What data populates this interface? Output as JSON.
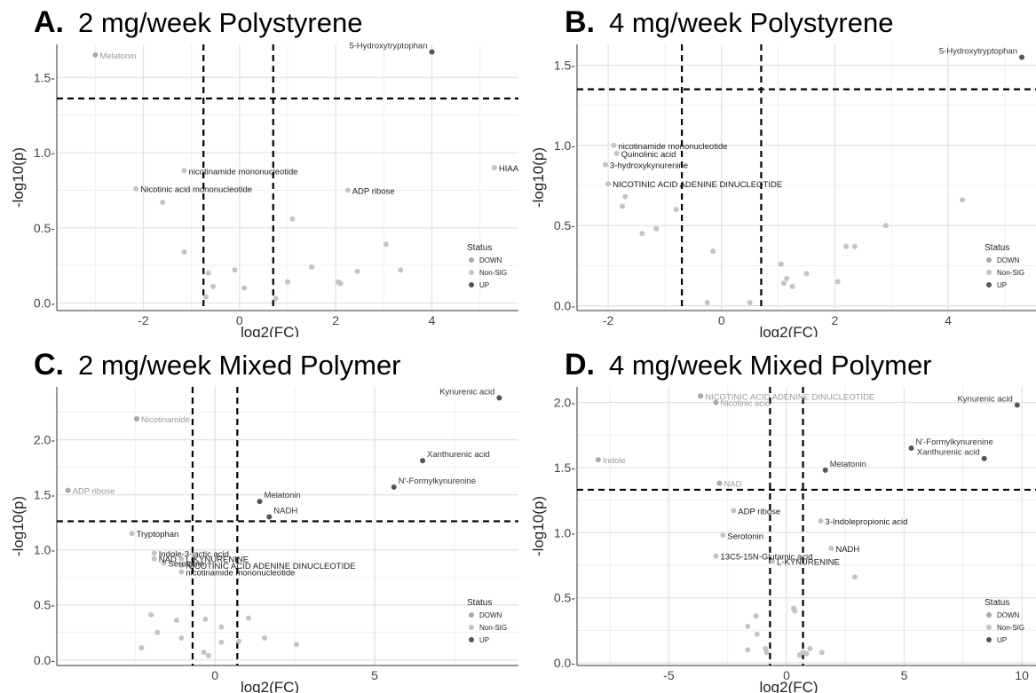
{
  "figure": {
    "panels": [
      {
        "letter": "A.",
        "title": "2 mg/week Polystyrene"
      },
      {
        "letter": "B.",
        "title": "4 mg/week Polystyrene"
      },
      {
        "letter": "C.",
        "title": "2 mg/week Mixed Polymer"
      },
      {
        "letter": "D.",
        "title": "4 mg/week Mixed Polymer"
      }
    ]
  },
  "chart_data": [
    {
      "type": "scatter",
      "title": "2 mg/week Polystyrene",
      "xlabel": "log2(FC)",
      "ylabel": "-log10(p)",
      "xlim": [
        -3.8,
        5.8
      ],
      "ylim": [
        -0.05,
        1.72
      ],
      "xticks": [
        -2,
        0,
        2,
        4
      ],
      "yticks": [
        0.0,
        0.5,
        1.0,
        1.5
      ],
      "ytick_labels": [
        "0.0-",
        "0.5-",
        "1.0-",
        "1.5-"
      ],
      "xtick_labels": [
        "-2",
        "0",
        "2",
        "4"
      ],
      "thresholds": {
        "x": [
          -0.75,
          0.7
        ],
        "y": [
          1.36
        ]
      },
      "legend": {
        "title": "Status",
        "position": "right",
        "entries": [
          "DOWN",
          "Non-SIG",
          "UP"
        ]
      },
      "colors": {
        "DOWN": "#a8a8a8",
        "Non-SIG": "#c4c4c4",
        "UP": "#555555"
      },
      "points": [
        {
          "x": -3.0,
          "y": 1.65,
          "status": "DOWN",
          "label": "Melatonin"
        },
        {
          "x": 4.0,
          "y": 1.67,
          "status": "UP",
          "label": "5-Hydroxytryptophan"
        },
        {
          "x": -1.15,
          "y": 0.88,
          "status": "Non-SIG",
          "label": "nicotinamide mononucleotide"
        },
        {
          "x": -2.15,
          "y": 0.76,
          "status": "Non-SIG",
          "label": "Nicotinic acid mononucleotide"
        },
        {
          "x": -1.6,
          "y": 0.67,
          "status": "Non-SIG"
        },
        {
          "x": 2.25,
          "y": 0.75,
          "status": "Non-SIG",
          "label": "ADP ribose"
        },
        {
          "x": 5.3,
          "y": 0.9,
          "status": "Non-SIG",
          "label": "HIAA"
        },
        {
          "x": 1.1,
          "y": 0.56,
          "status": "Non-SIG"
        },
        {
          "x": -1.15,
          "y": 0.34,
          "status": "Non-SIG"
        },
        {
          "x": -0.65,
          "y": 0.2,
          "status": "Non-SIG"
        },
        {
          "x": -0.55,
          "y": 0.11,
          "status": "Non-SIG"
        },
        {
          "x": -0.7,
          "y": 0.04,
          "status": "Non-SIG"
        },
        {
          "x": -0.1,
          "y": 0.22,
          "status": "Non-SIG"
        },
        {
          "x": 0.1,
          "y": 0.1,
          "status": "Non-SIG"
        },
        {
          "x": 0.75,
          "y": 0.03,
          "status": "Non-SIG"
        },
        {
          "x": 1.0,
          "y": 0.14,
          "status": "Non-SIG"
        },
        {
          "x": 1.5,
          "y": 0.24,
          "status": "Non-SIG"
        },
        {
          "x": 2.05,
          "y": 0.14,
          "status": "Non-SIG"
        },
        {
          "x": 2.1,
          "y": 0.13,
          "status": "Non-SIG"
        },
        {
          "x": 2.45,
          "y": 0.21,
          "status": "Non-SIG"
        },
        {
          "x": 3.05,
          "y": 0.39,
          "status": "Non-SIG"
        },
        {
          "x": 3.35,
          "y": 0.22,
          "status": "Non-SIG"
        }
      ]
    },
    {
      "type": "scatter",
      "title": "4 mg/week Polystyrene",
      "xlabel": "log2(FC)",
      "ylabel": "-log10(p)",
      "xlim": [
        -2.55,
        5.55
      ],
      "ylim": [
        -0.03,
        1.63
      ],
      "xticks": [
        -2,
        0,
        2,
        4
      ],
      "yticks": [
        0.0,
        0.5,
        1.0,
        1.5
      ],
      "ytick_labels": [
        "0.0-",
        "0.5-",
        "1.0-",
        "1.5-"
      ],
      "xtick_labels": [
        "-2",
        "0",
        "2",
        "4"
      ],
      "thresholds": {
        "x": [
          -0.7,
          0.7
        ],
        "y": [
          1.35
        ]
      },
      "legend": {
        "title": "Status",
        "position": "right",
        "entries": [
          "DOWN",
          "Non-SIG",
          "UP"
        ]
      },
      "colors": {
        "DOWN": "#a8a8a8",
        "Non-SIG": "#c4c4c4",
        "UP": "#555555"
      },
      "points": [
        {
          "x": 5.3,
          "y": 1.55,
          "status": "UP",
          "label": "5-Hydroxytryptophan"
        },
        {
          "x": -1.9,
          "y": 1.0,
          "status": "Non-SIG",
          "label": "nicotinamide mononucleotide"
        },
        {
          "x": -1.85,
          "y": 0.95,
          "status": "Non-SIG",
          "label": "Quinolinic acid"
        },
        {
          "x": -2.05,
          "y": 0.88,
          "status": "Non-SIG",
          "label": "3-hydroxykynurenine"
        },
        {
          "x": -2.0,
          "y": 0.76,
          "status": "Non-SIG",
          "label": "NICOTINIC ACID ADENINE DINUCLEOTIDE"
        },
        {
          "x": -1.7,
          "y": 0.68,
          "status": "Non-SIG"
        },
        {
          "x": -1.75,
          "y": 0.62,
          "status": "Non-SIG"
        },
        {
          "x": -0.8,
          "y": 0.6,
          "status": "Non-SIG"
        },
        {
          "x": -1.15,
          "y": 0.48,
          "status": "Non-SIG"
        },
        {
          "x": -1.4,
          "y": 0.45,
          "status": "Non-SIG"
        },
        {
          "x": -0.15,
          "y": 0.34,
          "status": "Non-SIG"
        },
        {
          "x": -0.25,
          "y": 0.02,
          "status": "Non-SIG"
        },
        {
          "x": 0.5,
          "y": 0.02,
          "status": "Non-SIG"
        },
        {
          "x": 1.05,
          "y": 0.26,
          "status": "Non-SIG"
        },
        {
          "x": 1.15,
          "y": 0.17,
          "status": "Non-SIG"
        },
        {
          "x": 1.1,
          "y": 0.14,
          "status": "Non-SIG"
        },
        {
          "x": 1.25,
          "y": 0.12,
          "status": "Non-SIG"
        },
        {
          "x": 1.5,
          "y": 0.2,
          "status": "Non-SIG"
        },
        {
          "x": 2.05,
          "y": 0.15,
          "status": "Non-SIG"
        },
        {
          "x": 2.2,
          "y": 0.37,
          "status": "Non-SIG"
        },
        {
          "x": 2.35,
          "y": 0.37,
          "status": "Non-SIG"
        },
        {
          "x": 2.9,
          "y": 0.5,
          "status": "Non-SIG"
        },
        {
          "x": 4.25,
          "y": 0.66,
          "status": "Non-SIG"
        }
      ]
    },
    {
      "type": "scatter",
      "title": "2 mg/week Mixed Polymer",
      "xlabel": "log2(FC)",
      "ylabel": "-log10(p)",
      "xlim": [
        -4.95,
        9.5
      ],
      "ylim": [
        -0.05,
        2.48
      ],
      "xticks": [
        0,
        5
      ],
      "yticks": [
        0.0,
        0.5,
        1.0,
        1.5,
        2.0
      ],
      "ytick_labels": [
        "0.0-",
        "0.5-",
        "1.0-",
        "1.5-",
        "2.0-"
      ],
      "xtick_labels": [
        "0",
        "5"
      ],
      "thresholds": {
        "x": [
          -0.7,
          0.7
        ],
        "y": [
          1.26
        ]
      },
      "legend": {
        "title": "Status",
        "position": "right",
        "entries": [
          "DOWN",
          "Non-SIG",
          "UP"
        ]
      },
      "colors": {
        "DOWN": "#a8a8a8",
        "Non-SIG": "#c4c4c4",
        "UP": "#555555"
      },
      "points": [
        {
          "x": 8.9,
          "y": 2.38,
          "status": "UP",
          "label": "Kynurenic acid"
        },
        {
          "x": -2.45,
          "y": 2.19,
          "status": "DOWN",
          "label": "Nicotinamide"
        },
        {
          "x": 6.5,
          "y": 1.81,
          "status": "UP",
          "label": "Xanthurenic acid"
        },
        {
          "x": -4.6,
          "y": 1.54,
          "status": "DOWN",
          "label": "ADP ribose"
        },
        {
          "x": 5.6,
          "y": 1.57,
          "status": "UP",
          "label": "N'-Formylkynurenine"
        },
        {
          "x": 1.4,
          "y": 1.44,
          "status": "UP",
          "label": "Melatonin"
        },
        {
          "x": 1.7,
          "y": 1.3,
          "status": "UP",
          "label": "NADH"
        },
        {
          "x": -2.6,
          "y": 1.15,
          "status": "Non-SIG",
          "label": "Tryptophan"
        },
        {
          "x": -1.9,
          "y": 0.97,
          "status": "Non-SIG",
          "label": "Indole-3-lactic acid"
        },
        {
          "x": -1.9,
          "y": 0.92,
          "status": "Non-SIG",
          "label": "NAD"
        },
        {
          "x": -1.05,
          "y": 0.92,
          "status": "Non-SIG",
          "label": "L-KYNURENINE"
        },
        {
          "x": -1.6,
          "y": 0.88,
          "status": "Non-SIG",
          "label": "Serotonin"
        },
        {
          "x": -1.05,
          "y": 0.86,
          "status": "Non-SIG",
          "label": "NICOTINIC ACID ADENINE DINUCLEOTIDE"
        },
        {
          "x": -1.05,
          "y": 0.8,
          "status": "Non-SIG",
          "label": "nicotinamide mononucleotide"
        },
        {
          "x": -2.0,
          "y": 0.41,
          "status": "Non-SIG"
        },
        {
          "x": -1.8,
          "y": 0.25,
          "status": "Non-SIG"
        },
        {
          "x": -2.3,
          "y": 0.11,
          "status": "Non-SIG"
        },
        {
          "x": -1.2,
          "y": 0.36,
          "status": "Non-SIG"
        },
        {
          "x": -1.05,
          "y": 0.2,
          "status": "Non-SIG"
        },
        {
          "x": -0.3,
          "y": 0.37,
          "status": "Non-SIG"
        },
        {
          "x": -0.35,
          "y": 0.07,
          "status": "Non-SIG"
        },
        {
          "x": -0.2,
          "y": 0.04,
          "status": "Non-SIG"
        },
        {
          "x": 0.2,
          "y": 0.3,
          "status": "Non-SIG"
        },
        {
          "x": 0.2,
          "y": 0.16,
          "status": "Non-SIG"
        },
        {
          "x": 0.75,
          "y": 0.17,
          "status": "Non-SIG"
        },
        {
          "x": 1.05,
          "y": 0.38,
          "status": "Non-SIG"
        },
        {
          "x": 1.55,
          "y": 0.2,
          "status": "Non-SIG"
        },
        {
          "x": 2.55,
          "y": 0.14,
          "status": "Non-SIG"
        }
      ]
    },
    {
      "type": "scatter",
      "title": "4 mg/week Mixed Polymer",
      "xlabel": "log2(FC)",
      "ylabel": "-log10(p)",
      "xlim": [
        -8.9,
        10.6
      ],
      "ylim": [
        -0.02,
        2.12
      ],
      "xticks": [
        -5,
        0,
        5,
        10
      ],
      "yticks": [
        0.0,
        0.5,
        1.0,
        1.5,
        2.0
      ],
      "ytick_labels": [
        "0.0-",
        "0.5-",
        "1.0-",
        "1.5-",
        "2.0-"
      ],
      "xtick_labels": [
        "-5",
        "0",
        "5",
        "10"
      ],
      "thresholds": {
        "x": [
          -0.7,
          0.7
        ],
        "y": [
          1.33
        ]
      },
      "legend": {
        "title": "Status",
        "position": "right",
        "entries": [
          "DOWN",
          "Non-SIG",
          "UP"
        ]
      },
      "colors": {
        "DOWN": "#a8a8a8",
        "Non-SIG": "#c4c4c4",
        "UP": "#555555"
      },
      "points": [
        {
          "x": -3.65,
          "y": 2.05,
          "status": "DOWN",
          "label": "NICOTINIC ACID ADENINE DINUCLEOTIDE"
        },
        {
          "x": -3.0,
          "y": 2.0,
          "status": "DOWN",
          "label": "Nicotinic acid"
        },
        {
          "x": 9.8,
          "y": 1.98,
          "status": "UP",
          "label": "Kynurenic acid"
        },
        {
          "x": -8.0,
          "y": 1.56,
          "status": "DOWN",
          "label": "Indole"
        },
        {
          "x": 5.3,
          "y": 1.65,
          "status": "UP",
          "label": "N'-Formylkynurenine"
        },
        {
          "x": 8.4,
          "y": 1.57,
          "status": "UP",
          "label": "Xanthurenic acid"
        },
        {
          "x": -2.85,
          "y": 1.38,
          "status": "DOWN",
          "label": "NAD"
        },
        {
          "x": 1.65,
          "y": 1.48,
          "status": "UP",
          "label": "Melatonin"
        },
        {
          "x": -2.25,
          "y": 1.17,
          "status": "Non-SIG",
          "label": "ADP ribose"
        },
        {
          "x": 1.45,
          "y": 1.09,
          "status": "Non-SIG",
          "label": "3-Indolepropionic acid"
        },
        {
          "x": -2.7,
          "y": 0.98,
          "status": "Non-SIG",
          "label": "Serotonin"
        },
        {
          "x": -3.0,
          "y": 0.82,
          "status": "Non-SIG",
          "label": "13C5-15N-Glutamic acid"
        },
        {
          "x": 1.9,
          "y": 0.88,
          "status": "Non-SIG",
          "label": "NADH"
        },
        {
          "x": -0.6,
          "y": 0.78,
          "status": "Non-SIG",
          "label": "L-KYNURENINE"
        },
        {
          "x": 2.9,
          "y": 0.66,
          "status": "Non-SIG"
        },
        {
          "x": -1.3,
          "y": 0.36,
          "status": "Non-SIG"
        },
        {
          "x": -1.65,
          "y": 0.28,
          "status": "Non-SIG"
        },
        {
          "x": -1.25,
          "y": 0.22,
          "status": "Non-SIG"
        },
        {
          "x": -1.65,
          "y": 0.1,
          "status": "Non-SIG"
        },
        {
          "x": -0.9,
          "y": 0.11,
          "status": "Non-SIG"
        },
        {
          "x": -0.85,
          "y": 0.08,
          "status": "Non-SIG"
        },
        {
          "x": 0.7,
          "y": 0.08,
          "status": "Non-SIG"
        },
        {
          "x": 1.0,
          "y": 0.11,
          "status": "Non-SIG"
        },
        {
          "x": 0.85,
          "y": 0.07,
          "status": "Non-SIG"
        },
        {
          "x": 0.55,
          "y": 0.06,
          "status": "Non-SIG"
        },
        {
          "x": 1.5,
          "y": 0.08,
          "status": "Non-SIG"
        },
        {
          "x": 0.3,
          "y": 0.42,
          "status": "Non-SIG"
        },
        {
          "x": 0.35,
          "y": 0.4,
          "status": "Non-SIG"
        }
      ]
    }
  ]
}
